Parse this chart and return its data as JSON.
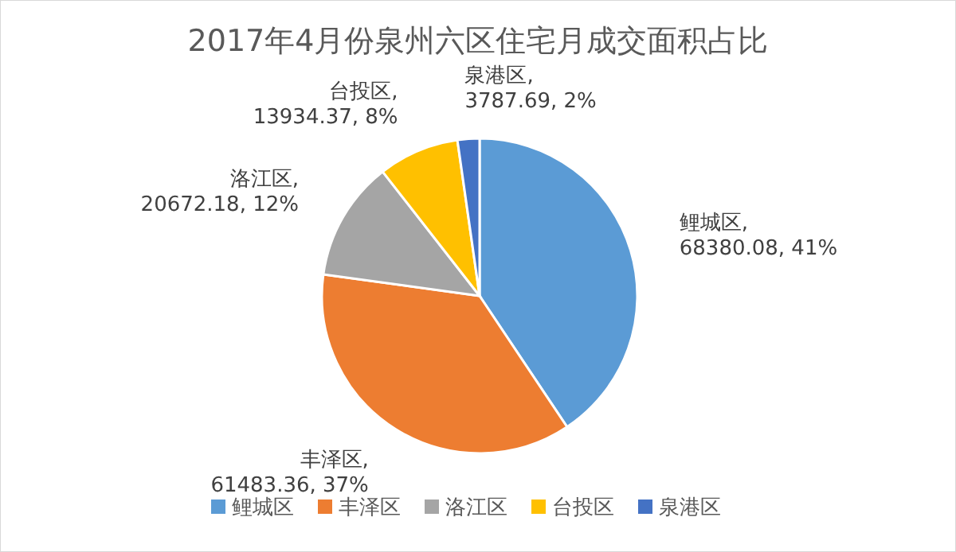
{
  "chart_data": {
    "type": "pie",
    "title": "2017年4月份泉州六区住宅月成交面积占比",
    "categories": [
      "鲤城区",
      "丰泽区",
      "洛江区",
      "台投区",
      "泉港区"
    ],
    "values": [
      68380.08,
      61483.36,
      20672.18,
      13934.37,
      3787.69
    ],
    "value_labels": [
      "鲤城区, 68380.08, 41%",
      "丰泽区, 61483.36, 37%",
      "洛江区, 20672.18, 12%",
      "台投区, 13934.37, 8%",
      "泉港区, 3787.69, 2%"
    ],
    "colors": [
      "#5b9bd5",
      "#ed7d31",
      "#a5a5a5",
      "#ffc000",
      "#4472c4"
    ],
    "legend": "bottom"
  }
}
